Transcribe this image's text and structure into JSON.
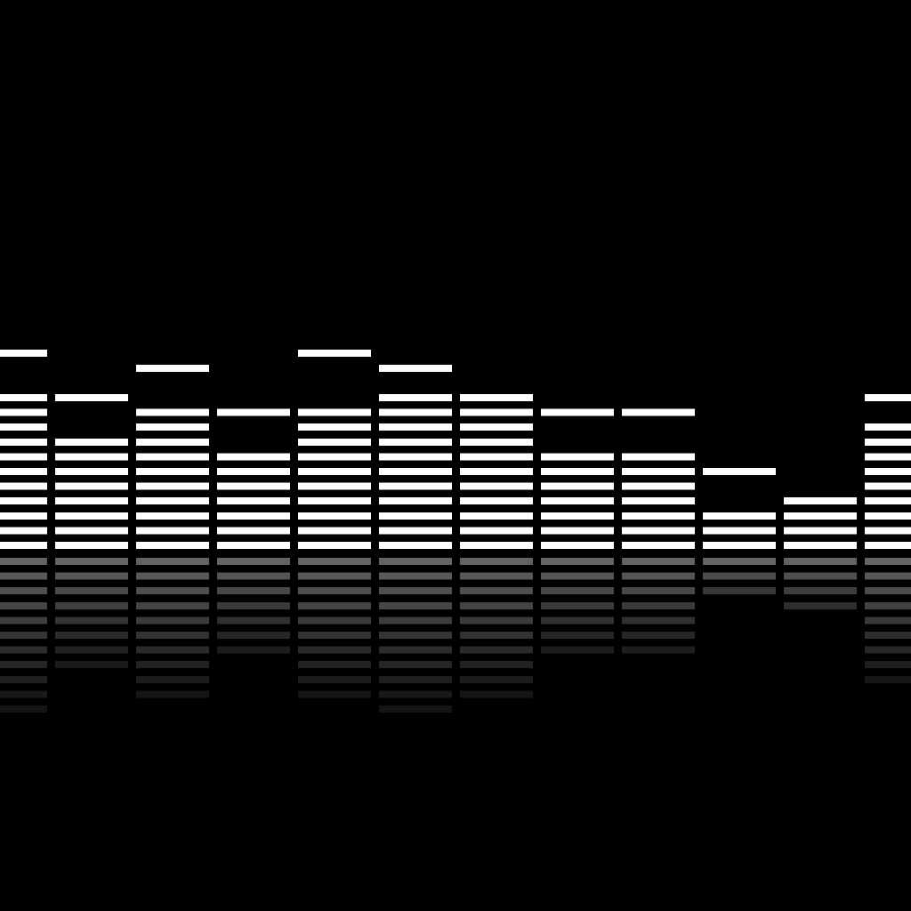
{
  "colors": {
    "background": "#000000",
    "bar": "#ffffff"
  },
  "equalizer": {
    "bands": [
      {
        "lit_segments": 11,
        "peak_segments": 14
      },
      {
        "lit_segments": 8,
        "peak_segments": 11
      },
      {
        "lit_segments": 10,
        "peak_segments": 13
      },
      {
        "lit_segments": 7,
        "peak_segments": 10
      },
      {
        "lit_segments": 10,
        "peak_segments": 14
      },
      {
        "lit_segments": 11,
        "peak_segments": 13
      },
      {
        "lit_segments": 10,
        "peak_segments": 11
      },
      {
        "lit_segments": 7,
        "peak_segments": 10
      },
      {
        "lit_segments": 7,
        "peak_segments": 10
      },
      {
        "lit_segments": 3,
        "peak_segments": 6
      },
      {
        "lit_segments": 4,
        "peak_segments": 4
      },
      {
        "lit_segments": 9,
        "peak_segments": 11
      }
    ]
  }
}
